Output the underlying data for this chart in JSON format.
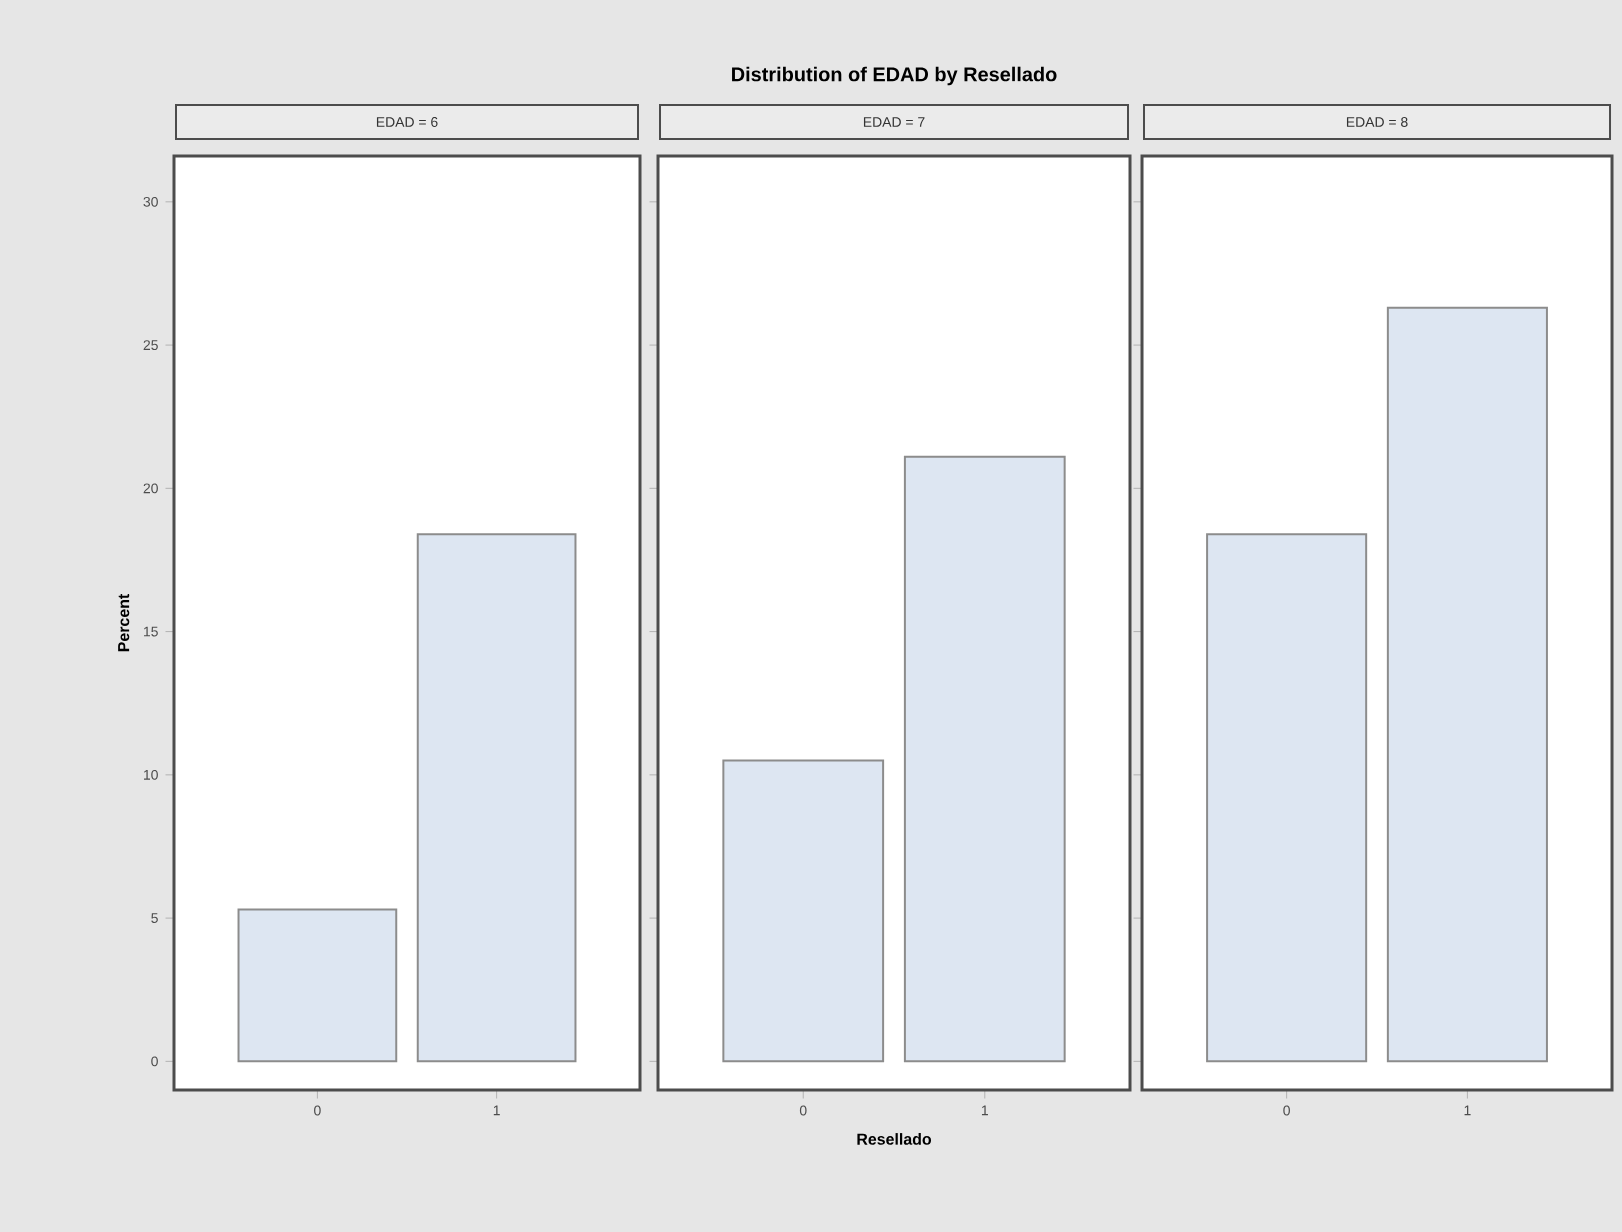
{
  "chart_data": [
    {
      "type": "bar",
      "subtitle": "EDAD = 6",
      "ylabel": "Percent",
      "categories": [
        "0",
        "1"
      ],
      "values": [
        5.3,
        18.4
      ],
      "color": "#dde6f2",
      "ylim": [
        -1,
        31.6
      ],
      "yticks": [
        0,
        5,
        10,
        15,
        20,
        25,
        30
      ]
    },
    {
      "type": "bar",
      "title": "Distribution of EDAD by Resellado",
      "subtitle": "EDAD = 7",
      "xlabel": "Resellado",
      "categories": [
        "0",
        "1"
      ],
      "values": [
        10.5,
        21.1
      ],
      "color": "#dde6f2",
      "ylim": [
        -1,
        31.6
      ],
      "yticks": [
        0,
        5,
        10,
        15,
        20,
        25,
        30
      ],
      "tick_labels": "x"
    },
    {
      "type": "bar",
      "subtitle": "EDAD = 8",
      "categories": [
        "0",
        "1"
      ],
      "values": [
        18.4,
        26.3
      ],
      "color": "#dde6f2",
      "ylim": [
        -1,
        31.6
      ],
      "yticks": [
        0,
        5,
        10,
        15,
        20,
        25,
        30
      ],
      "tick_labels": "x"
    }
  ]
}
